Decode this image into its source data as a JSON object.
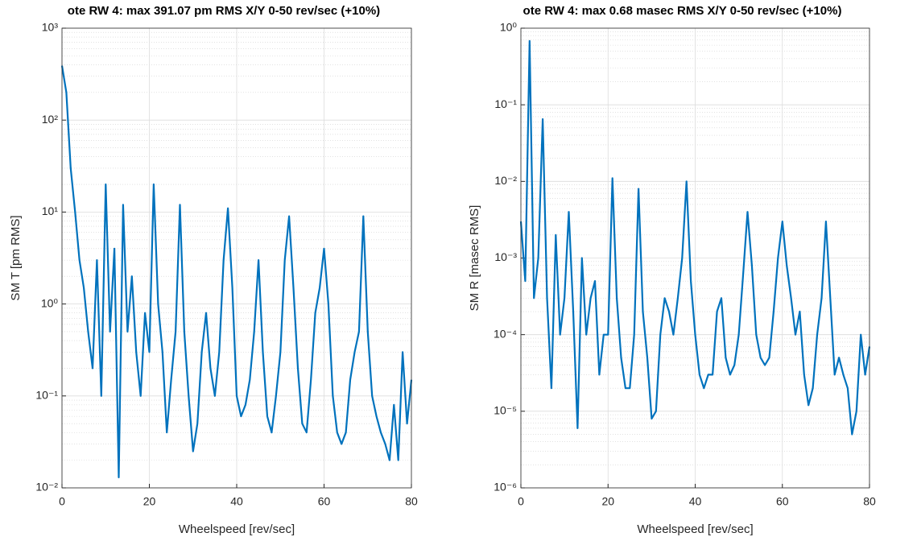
{
  "chart_data": [
    {
      "type": "line",
      "title": "ote RW 4: max 391.07 pm RMS X/Y 0-50 rev/sec (+10%)",
      "x_label": "Wheelspeed [rev/sec]",
      "y_label": "SM T [pm RMS]",
      "log_y": true,
      "grid": true,
      "minor_grid": true,
      "xlim": [
        0,
        80
      ],
      "xticks": [
        0,
        20,
        40,
        60,
        80
      ],
      "ylim": [
        0.01,
        1000
      ],
      "yticks": [
        {
          "value": 0.01,
          "label": "10⁻²"
        },
        {
          "value": 0.1,
          "label": "10⁻¹"
        },
        {
          "value": 1,
          "label": "10⁰"
        },
        {
          "value": 10,
          "label": "10¹"
        },
        {
          "value": 100,
          "label": "10²"
        },
        {
          "value": 1000,
          "label": "10³"
        }
      ],
      "x": [
        0,
        1,
        2,
        3,
        4,
        5,
        6,
        7,
        8,
        9,
        10,
        11,
        12,
        13,
        14,
        15,
        16,
        17,
        18,
        19,
        20,
        21,
        22,
        23,
        24,
        25,
        26,
        27,
        28,
        29,
        30,
        31,
        32,
        33,
        34,
        35,
        36,
        37,
        38,
        39,
        40,
        41,
        42,
        43,
        44,
        45,
        46,
        47,
        48,
        49,
        50,
        51,
        52,
        53,
        54,
        55,
        56,
        57,
        58,
        59,
        60,
        61,
        62,
        63,
        64,
        65,
        66,
        67,
        68,
        69,
        70,
        71,
        72,
        73,
        74,
        75,
        76,
        77,
        78,
        79,
        80
      ],
      "series": [
        {
          "color": "#0072bd",
          "values": [
            391.07,
            200,
            30,
            10,
            3,
            1.5,
            0.5,
            0.2,
            3,
            0.1,
            20,
            0.5,
            4,
            0.013,
            12,
            0.5,
            2,
            0.3,
            0.1,
            0.8,
            0.3,
            20,
            1,
            0.3,
            0.04,
            0.15,
            0.5,
            12,
            0.5,
            0.1,
            0.025,
            0.05,
            0.3,
            0.8,
            0.2,
            0.1,
            0.3,
            3,
            11,
            1.5,
            0.1,
            0.06,
            0.08,
            0.15,
            0.5,
            3,
            0.3,
            0.06,
            0.04,
            0.1,
            0.3,
            3,
            9,
            1.5,
            0.2,
            0.05,
            0.04,
            0.15,
            0.8,
            1.5,
            4,
            1,
            0.1,
            0.04,
            0.03,
            0.04,
            0.15,
            0.3,
            0.5,
            9,
            0.5,
            0.1,
            0.06,
            0.04,
            0.03,
            0.02,
            0.08,
            0.02,
            0.3,
            0.05,
            0.15
          ]
        }
      ]
    },
    {
      "type": "line",
      "title": "ote RW 4: max 0.68 masec RMS X/Y 0-50 rev/sec (+10%)",
      "x_label": "Wheelspeed [rev/sec]",
      "y_label": "SM R [masec RMS]",
      "log_y": true,
      "grid": true,
      "minor_grid": true,
      "xlim": [
        0,
        80
      ],
      "xticks": [
        0,
        20,
        40,
        60,
        80
      ],
      "ylim": [
        1e-06,
        1
      ],
      "yticks": [
        {
          "value": 1e-06,
          "label": "10⁻⁶"
        },
        {
          "value": 1e-05,
          "label": "10⁻⁵"
        },
        {
          "value": 0.0001,
          "label": "10⁻⁴"
        },
        {
          "value": 0.001,
          "label": "10⁻³"
        },
        {
          "value": 0.01,
          "label": "10⁻²"
        },
        {
          "value": 0.1,
          "label": "10⁻¹"
        },
        {
          "value": 1,
          "label": "10⁰"
        }
      ],
      "x": [
        0,
        1,
        2,
        3,
        4,
        5,
        6,
        7,
        8,
        9,
        10,
        11,
        12,
        13,
        14,
        15,
        16,
        17,
        18,
        19,
        20,
        21,
        22,
        23,
        24,
        25,
        26,
        27,
        28,
        29,
        30,
        31,
        32,
        33,
        34,
        35,
        36,
        37,
        38,
        39,
        40,
        41,
        42,
        43,
        44,
        45,
        46,
        47,
        48,
        49,
        50,
        51,
        52,
        53,
        54,
        55,
        56,
        57,
        58,
        59,
        60,
        61,
        62,
        63,
        64,
        65,
        66,
        67,
        68,
        69,
        70,
        71,
        72,
        73,
        74,
        75,
        76,
        77,
        78,
        79,
        80
      ],
      "series": [
        {
          "color": "#0072bd",
          "values": [
            0.003,
            0.0005,
            0.68,
            0.0003,
            0.001,
            0.065,
            0.0003,
            2e-05,
            0.002,
            0.0001,
            0.0003,
            0.004,
            0.0002,
            6e-06,
            0.001,
            0.0001,
            0.0003,
            0.0005,
            3e-05,
            0.0001,
            0.0001,
            0.011,
            0.0003,
            5e-05,
            2e-05,
            2e-05,
            0.0001,
            0.008,
            0.0002,
            5e-05,
            8e-06,
            1e-05,
            0.0001,
            0.0003,
            0.0002,
            0.0001,
            0.0003,
            0.001,
            0.01,
            0.0005,
            0.0001,
            3e-05,
            2e-05,
            3e-05,
            3e-05,
            0.0002,
            0.0003,
            5e-05,
            3e-05,
            4e-05,
            0.0001,
            0.0006,
            0.004,
            0.0008,
            0.0001,
            5e-05,
            4e-05,
            5e-05,
            0.0002,
            0.001,
            0.003,
            0.0008,
            0.0003,
            0.0001,
            0.0002,
            3e-05,
            1.2e-05,
            2e-05,
            0.0001,
            0.0003,
            0.003,
            0.0003,
            3e-05,
            5e-05,
            3e-05,
            2e-05,
            5e-06,
            1e-05,
            0.0001,
            3e-05,
            7e-05
          ]
        }
      ]
    }
  ]
}
